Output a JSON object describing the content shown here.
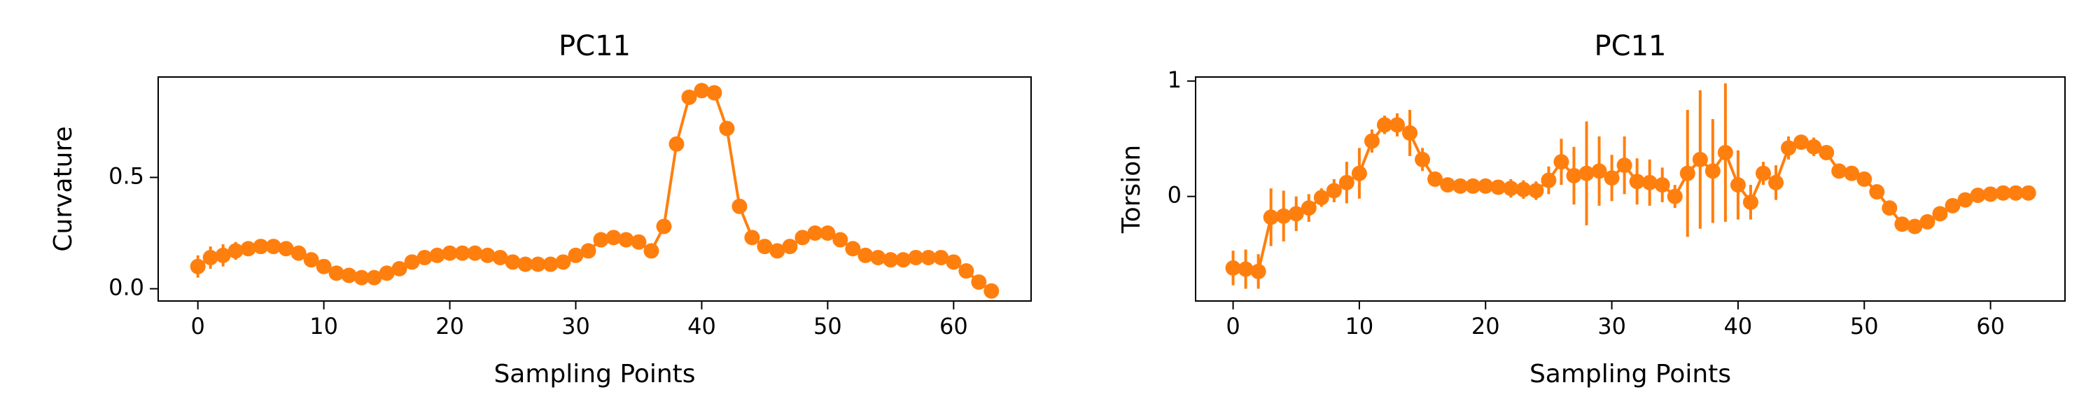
{
  "chart_data": [
    {
      "type": "line",
      "title": "PC11",
      "xlabel": "Sampling Points",
      "ylabel": "Curvature",
      "color": "#ff7f0e",
      "x": [
        0,
        1,
        2,
        3,
        4,
        5,
        6,
        7,
        8,
        9,
        10,
        11,
        12,
        13,
        14,
        15,
        16,
        17,
        18,
        19,
        20,
        21,
        22,
        23,
        24,
        25,
        26,
        27,
        28,
        29,
        30,
        31,
        32,
        33,
        34,
        35,
        36,
        37,
        38,
        39,
        40,
        41,
        42,
        43,
        44,
        45,
        46,
        47,
        48,
        49,
        50,
        51,
        52,
        53,
        54,
        55,
        56,
        57,
        58,
        59,
        60,
        61,
        62,
        63
      ],
      "values": [
        0.1,
        0.14,
        0.15,
        0.17,
        0.18,
        0.19,
        0.19,
        0.18,
        0.16,
        0.13,
        0.1,
        0.07,
        0.06,
        0.05,
        0.05,
        0.07,
        0.09,
        0.12,
        0.14,
        0.15,
        0.16,
        0.16,
        0.16,
        0.15,
        0.14,
        0.12,
        0.11,
        0.11,
        0.11,
        0.12,
        0.15,
        0.17,
        0.22,
        0.23,
        0.22,
        0.21,
        0.17,
        0.28,
        0.65,
        0.86,
        0.89,
        0.88,
        0.72,
        0.37,
        0.23,
        0.19,
        0.17,
        0.19,
        0.23,
        0.25,
        0.25,
        0.22,
        0.18,
        0.15,
        0.14,
        0.13,
        0.13,
        0.14,
        0.14,
        0.14,
        0.12,
        0.08,
        0.03,
        -0.01
      ],
      "errors": [
        0.05,
        0.05,
        0.05,
        0.04,
        0.03,
        0.02,
        0.02,
        0.02,
        0.02,
        0.02,
        0.02,
        0.02,
        0.02,
        0.02,
        0.02,
        0.02,
        0.02,
        0.02,
        0.02,
        0.02,
        0.02,
        0.02,
        0.02,
        0.02,
        0.02,
        0.02,
        0.02,
        0.02,
        0.02,
        0.02,
        0.02,
        0.02,
        0.02,
        0.02,
        0.02,
        0.02,
        0.02,
        0.02,
        0.02,
        0.02,
        0.02,
        0.02,
        0.02,
        0.02,
        0.02,
        0.02,
        0.02,
        0.02,
        0.02,
        0.02,
        0.02,
        0.02,
        0.02,
        0.02,
        0.02,
        0.02,
        0.02,
        0.02,
        0.02,
        0.02,
        0.02,
        0.02,
        0.02,
        0.02
      ],
      "xlim": [
        -3.15,
        66.15
      ],
      "ylim": [
        -0.055,
        0.951
      ],
      "xticks": [
        0,
        10,
        20,
        30,
        40,
        50,
        60
      ],
      "yticks": [
        {
          "value": 0,
          "label": "0.0"
        },
        {
          "value": 0.5,
          "label": "0.5"
        }
      ]
    },
    {
      "type": "line",
      "title": "PC11",
      "xlabel": "Sampling Points",
      "ylabel": "Torsion",
      "color": "#ff7f0e",
      "x": [
        0,
        1,
        2,
        3,
        4,
        5,
        6,
        7,
        8,
        9,
        10,
        11,
        12,
        13,
        14,
        15,
        16,
        17,
        18,
        19,
        20,
        21,
        22,
        23,
        24,
        25,
        26,
        27,
        28,
        29,
        30,
        31,
        32,
        33,
        34,
        35,
        36,
        37,
        38,
        39,
        40,
        41,
        42,
        43,
        44,
        45,
        46,
        47,
        48,
        49,
        50,
        51,
        52,
        53,
        54,
        55,
        56,
        57,
        58,
        59,
        60,
        61,
        62,
        63
      ],
      "values": [
        -0.62,
        -0.63,
        -0.65,
        -0.18,
        -0.17,
        -0.15,
        -0.1,
        -0.01,
        0.05,
        0.12,
        0.2,
        0.48,
        0.62,
        0.62,
        0.55,
        0.32,
        0.15,
        0.1,
        0.09,
        0.09,
        0.09,
        0.08,
        0.07,
        0.06,
        0.05,
        0.14,
        0.3,
        0.18,
        0.2,
        0.22,
        0.16,
        0.27,
        0.13,
        0.12,
        0.1,
        0.0,
        0.2,
        0.32,
        0.22,
        0.38,
        0.1,
        -0.05,
        0.2,
        0.12,
        0.42,
        0.47,
        0.43,
        0.38,
        0.22,
        0.2,
        0.15,
        0.04,
        -0.1,
        -0.24,
        -0.26,
        -0.22,
        -0.15,
        -0.08,
        -0.03,
        0.01,
        0.02,
        0.03,
        0.03,
        0.03
      ],
      "errors": [
        0.15,
        0.17,
        0.15,
        0.25,
        0.22,
        0.15,
        0.12,
        0.08,
        0.1,
        0.18,
        0.22,
        0.1,
        0.08,
        0.1,
        0.2,
        0.1,
        0.06,
        0.05,
        0.05,
        0.05,
        0.05,
        0.05,
        0.08,
        0.08,
        0.08,
        0.12,
        0.2,
        0.25,
        0.45,
        0.3,
        0.2,
        0.25,
        0.2,
        0.2,
        0.15,
        0.1,
        0.55,
        0.6,
        0.45,
        0.6,
        0.3,
        0.15,
        0.1,
        0.15,
        0.1,
        0.05,
        0.08,
        0.06,
        0.05,
        0.05,
        0.05,
        0.04,
        0.04,
        0.04,
        0.04,
        0.04,
        0.04,
        0.04,
        0.04,
        0.03,
        0.03,
        0.03,
        0.03,
        0.03
      ],
      "xlim": [
        -2.97,
        65.9
      ],
      "ylim": [
        -0.906,
        1.035
      ],
      "xticks": [
        0,
        10,
        20,
        30,
        40,
        50,
        60
      ],
      "yticks": [
        0,
        1
      ]
    }
  ]
}
